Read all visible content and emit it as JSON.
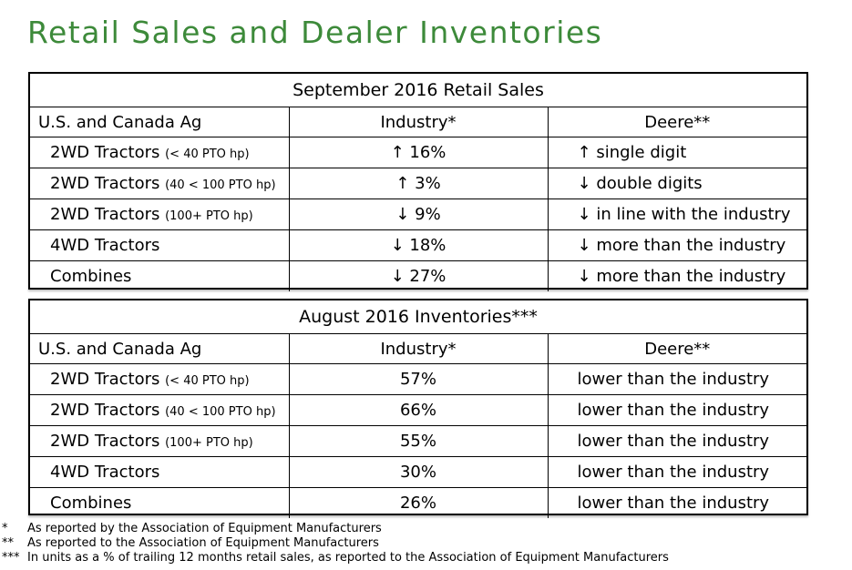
{
  "title": "Retail Sales and Dealer Inventories",
  "sales": {
    "caption": "September 2016 Retail Sales",
    "headers": {
      "segment": "U.S. and Canada Ag",
      "industry": "Industry*",
      "deere": "Deere**"
    },
    "rows": [
      {
        "name": "2WD Tractors",
        "qualifier": "(< 40 PTO hp)",
        "industry_arrow": "↑",
        "industry": "16%",
        "deere_arrow": "↑",
        "deere": "single digit"
      },
      {
        "name": "2WD Tractors",
        "qualifier": "(40 < 100 PTO hp)",
        "industry_arrow": "↑",
        "industry": "3%",
        "deere_arrow": "↓",
        "deere": "double digits"
      },
      {
        "name": "2WD Tractors",
        "qualifier": "(100+ PTO hp)",
        "industry_arrow": "↓",
        "industry": "9%",
        "deere_arrow": "↓",
        "deere": "in line with the industry"
      },
      {
        "name": "4WD Tractors",
        "qualifier": "",
        "industry_arrow": "↓",
        "industry": "18%",
        "deere_arrow": "↓",
        "deere": "more than the industry"
      },
      {
        "name": "Combines",
        "qualifier": "",
        "industry_arrow": "↓",
        "industry": "27%",
        "deere_arrow": "↓",
        "deere": "more than the industry"
      }
    ]
  },
  "inventories": {
    "caption": "August 2016 Inventories***",
    "headers": {
      "segment": "U.S. and Canada Ag",
      "industry": "Industry*",
      "deere": "Deere**"
    },
    "rows": [
      {
        "name": "2WD Tractors",
        "qualifier": "(< 40 PTO hp)",
        "industry": "57%",
        "deere": "lower than the industry"
      },
      {
        "name": "2WD Tractors",
        "qualifier": "(40 < 100 PTO hp)",
        "industry": "66%",
        "deere": "lower than the industry"
      },
      {
        "name": "2WD Tractors",
        "qualifier": "(100+ PTO hp)",
        "industry": "55%",
        "deere": "lower than the industry"
      },
      {
        "name": "4WD Tractors",
        "qualifier": "",
        "industry": "30%",
        "deere": "lower than the industry"
      },
      {
        "name": "Combines",
        "qualifier": "",
        "industry": "26%",
        "deere": "lower than the industry"
      }
    ]
  },
  "footnotes": [
    {
      "mark": "*",
      "text": "As reported by the Association of Equipment Manufacturers"
    },
    {
      "mark": "**",
      "text": "As reported to the Association of Equipment Manufacturers"
    },
    {
      "mark": "***",
      "text": "In units as a % of trailing 12 months retail sales, as reported to the Association of Equipment Manufacturers"
    }
  ],
  "colors": {
    "title": "#3d8a3a"
  }
}
